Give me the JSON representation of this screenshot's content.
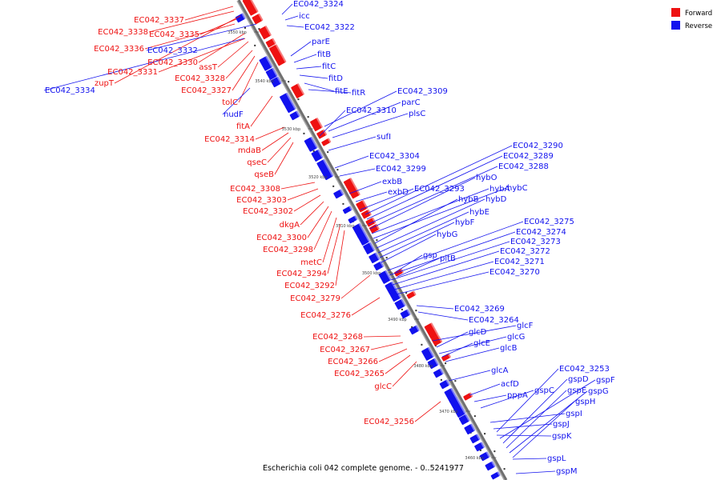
{
  "caption": "Escherichia coli 042 complete genome. - 0..5241977",
  "legend": [
    {
      "label": "Forward",
      "color": "#ee1111"
    },
    {
      "label": "Reverse",
      "color": "#1111ee"
    }
  ],
  "ticks": [
    "3550 kbp",
    "3540 kbp",
    "3530 kbp",
    "3520 kbp",
    "3510 kbp",
    "3500 kbp",
    "3490 kbp",
    "3480 kbp",
    "3470 kbp",
    "3460 kbp"
  ],
  "forward_labels": [
    "EC042_3337",
    "EC042_3338",
    "EC042_3335",
    "EC042_3336",
    "EC042_3330",
    "assT",
    "EC042_3331",
    "EC042_3328",
    "zupT",
    "EC042_3327",
    "tolC",
    "fitA",
    "EC042_3314",
    "mdaB",
    "qseC",
    "qseB",
    "EC042_3308",
    "EC042_3303",
    "EC042_3302",
    "dkgA",
    "EC042_3300",
    "EC042_3298",
    "metC",
    "EC042_3294",
    "EC042_3292",
    "EC042_3279",
    "EC042_3276",
    "EC042_3268",
    "EC042_3267",
    "EC042_3266",
    "EC042_3265",
    "glcC",
    "EC042_3256"
  ],
  "reverse_labels": [
    "EC042_3324",
    "icc",
    "EC042_3322",
    "EC042_3332",
    "EC042_3334",
    "parE",
    "fitB",
    "fitC",
    "fitD",
    "fitE",
    "fitR",
    "nudF",
    "EC042_3309",
    "parC",
    "EC042_3310",
    "plsC",
    "sufI",
    "EC042_3304",
    "EC042_3299",
    "exbB",
    "exbD",
    "EC042_3290",
    "EC042_3289",
    "EC042_3288",
    "hybO",
    "EC042_3293",
    "hybA",
    "hybC",
    "hybB",
    "hybD",
    "hybE",
    "hybF",
    "hybG",
    "EC042_3275",
    "EC042_3274",
    "EC042_3273",
    "EC042_3272",
    "EC042_3271",
    "EC042_3270",
    "gsp",
    "pitB",
    "EC042_3269",
    "EC042_3264",
    "glcF",
    "glcD",
    "glcG",
    "glcE",
    "glcB",
    "glcA",
    "EC042_3253",
    "gspF",
    "gspD",
    "gspC",
    "gspE",
    "gspG",
    "acfD",
    "pppA",
    "gspH",
    "gspI",
    "gspJ",
    "gspK",
    "gspL",
    "gspM"
  ]
}
